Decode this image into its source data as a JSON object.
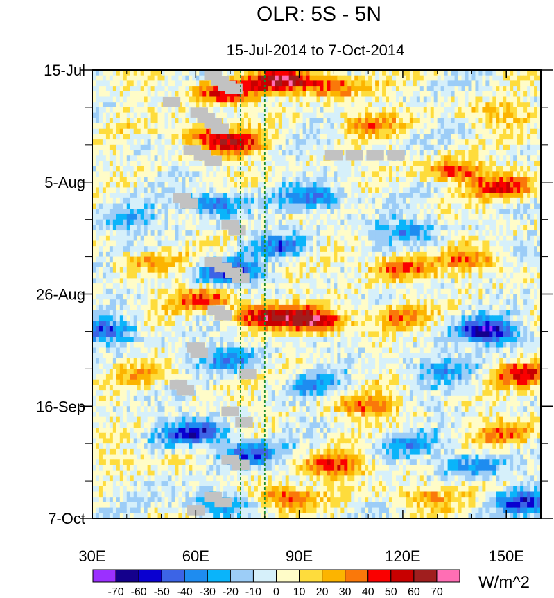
{
  "chart_data": {
    "type": "heatmap",
    "title": "OLR: 5S - 5N",
    "subtitle": "15-Jul-2014 to 7-Oct-2014",
    "xlabel": "",
    "ylabel": "",
    "x_range": [
      30,
      160
    ],
    "y_range_days": [
      0,
      84
    ],
    "x_ticks": [
      {
        "value": 30,
        "label": "30E"
      },
      {
        "value": 60,
        "label": "60E"
      },
      {
        "value": 90,
        "label": "90E"
      },
      {
        "value": 120,
        "label": "120E"
      },
      {
        "value": 150,
        "label": "150E"
      }
    ],
    "y_ticks": [
      {
        "day": 0,
        "label": "15-Jul"
      },
      {
        "day": 21,
        "label": "5-Aug"
      },
      {
        "day": 42,
        "label": "26-Aug"
      },
      {
        "day": 63,
        "label": "16-Sep"
      },
      {
        "day": 84,
        "label": "7-Oct"
      }
    ],
    "reference_lines_lon": [
      73,
      80
    ],
    "reference_line_color": "#1a8a2a",
    "colorbar": {
      "units": "W/m^2",
      "levels": [
        "-70",
        "-60",
        "-50",
        "-40",
        "-30",
        "-20",
        "-10",
        "0",
        "10",
        "20",
        "30",
        "40",
        "50",
        "60",
        "70"
      ],
      "colors": [
        "#9b30ff",
        "#14008c",
        "#0a00d0",
        "#3c64e6",
        "#1e8cf0",
        "#0ab4fa",
        "#9ccdf7",
        "#d6f0fa",
        "#fffcc8",
        "#fedc3c",
        "#fcb400",
        "#fa780a",
        "#fa0000",
        "#c80000",
        "#a01e1e",
        "#ff6eb4"
      ]
    },
    "anomaly_blobs": [
      {
        "lon": 85,
        "day": 2,
        "value": 65
      },
      {
        "lon": 68,
        "day": 4,
        "value": 55
      },
      {
        "lon": 100,
        "day": 3,
        "value": 40
      },
      {
        "lon": 72,
        "day": 14,
        "value": 45
      },
      {
        "lon": 62,
        "day": 12,
        "value": 35
      },
      {
        "lon": 110,
        "day": 10,
        "value": 30
      },
      {
        "lon": 145,
        "day": 8,
        "value": 25
      },
      {
        "lon": 135,
        "day": 19,
        "value": 40
      },
      {
        "lon": 150,
        "day": 22,
        "value": 45
      },
      {
        "lon": 95,
        "day": 24,
        "value": -40
      },
      {
        "lon": 65,
        "day": 25,
        "value": -45
      },
      {
        "lon": 40,
        "day": 28,
        "value": -25
      },
      {
        "lon": 120,
        "day": 30,
        "value": -30
      },
      {
        "lon": 85,
        "day": 33,
        "value": -35
      },
      {
        "lon": 70,
        "day": 38,
        "value": -55
      },
      {
        "lon": 45,
        "day": 36,
        "value": 25
      },
      {
        "lon": 118,
        "day": 37,
        "value": 40
      },
      {
        "lon": 140,
        "day": 36,
        "value": 35
      },
      {
        "lon": 95,
        "day": 47,
        "value": 65
      },
      {
        "lon": 80,
        "day": 46,
        "value": 55
      },
      {
        "lon": 62,
        "day": 43,
        "value": 40
      },
      {
        "lon": 35,
        "day": 49,
        "value": -45
      },
      {
        "lon": 145,
        "day": 49,
        "value": -65
      },
      {
        "lon": 118,
        "day": 46,
        "value": 30
      },
      {
        "lon": 130,
        "day": 56,
        "value": -30
      },
      {
        "lon": 70,
        "day": 54,
        "value": -35
      },
      {
        "lon": 95,
        "day": 59,
        "value": -25
      },
      {
        "lon": 155,
        "day": 57,
        "value": 45
      },
      {
        "lon": 45,
        "day": 57,
        "value": 20
      },
      {
        "lon": 110,
        "day": 63,
        "value": 35
      },
      {
        "lon": 60,
        "day": 68,
        "value": -55
      },
      {
        "lon": 75,
        "day": 72,
        "value": -45
      },
      {
        "lon": 100,
        "day": 74,
        "value": 45
      },
      {
        "lon": 120,
        "day": 70,
        "value": -25
      },
      {
        "lon": 140,
        "day": 74,
        "value": -35
      },
      {
        "lon": 150,
        "day": 68,
        "value": 30
      },
      {
        "lon": 85,
        "day": 80,
        "value": 45
      },
      {
        "lon": 65,
        "day": 81,
        "value": -40
      },
      {
        "lon": 40,
        "day": 73,
        "value": 15
      },
      {
        "lon": 125,
        "day": 80,
        "value": 30
      },
      {
        "lon": 155,
        "day": 81,
        "value": -45
      }
    ],
    "missing_data_cells": [
      {
        "lon": 65,
        "day": 1
      },
      {
        "lon": 67,
        "day": 2
      },
      {
        "lon": 69,
        "day": 3
      },
      {
        "lon": 71,
        "day": 3.5
      },
      {
        "lon": 53,
        "day": 6
      },
      {
        "lon": 61,
        "day": 8
      },
      {
        "lon": 63,
        "day": 9
      },
      {
        "lon": 65,
        "day": 10
      },
      {
        "lon": 67,
        "day": 11
      },
      {
        "lon": 59,
        "day": 15
      },
      {
        "lon": 62,
        "day": 16
      },
      {
        "lon": 65,
        "day": 17
      },
      {
        "lon": 100,
        "day": 16
      },
      {
        "lon": 106,
        "day": 16
      },
      {
        "lon": 112,
        "day": 16
      },
      {
        "lon": 118,
        "day": 16
      },
      {
        "lon": 56,
        "day": 24
      },
      {
        "lon": 58,
        "day": 25
      },
      {
        "lon": 70,
        "day": 29
      },
      {
        "lon": 72,
        "day": 30
      },
      {
        "lon": 65,
        "day": 36
      },
      {
        "lon": 68,
        "day": 37
      },
      {
        "lon": 71,
        "day": 38
      },
      {
        "lon": 73,
        "day": 39
      },
      {
        "lon": 66,
        "day": 45
      },
      {
        "lon": 68,
        "day": 46
      },
      {
        "lon": 60,
        "day": 52
      },
      {
        "lon": 61,
        "day": 53
      },
      {
        "lon": 75,
        "day": 57
      },
      {
        "lon": 55,
        "day": 59
      },
      {
        "lon": 57,
        "day": 60
      },
      {
        "lon": 70,
        "day": 64
      },
      {
        "lon": 74,
        "day": 66
      },
      {
        "lon": 70,
        "day": 73
      },
      {
        "lon": 73,
        "day": 74
      },
      {
        "lon": 65,
        "day": 80
      },
      {
        "lon": 68,
        "day": 81
      },
      {
        "lon": 60,
        "day": 82.5
      }
    ]
  }
}
